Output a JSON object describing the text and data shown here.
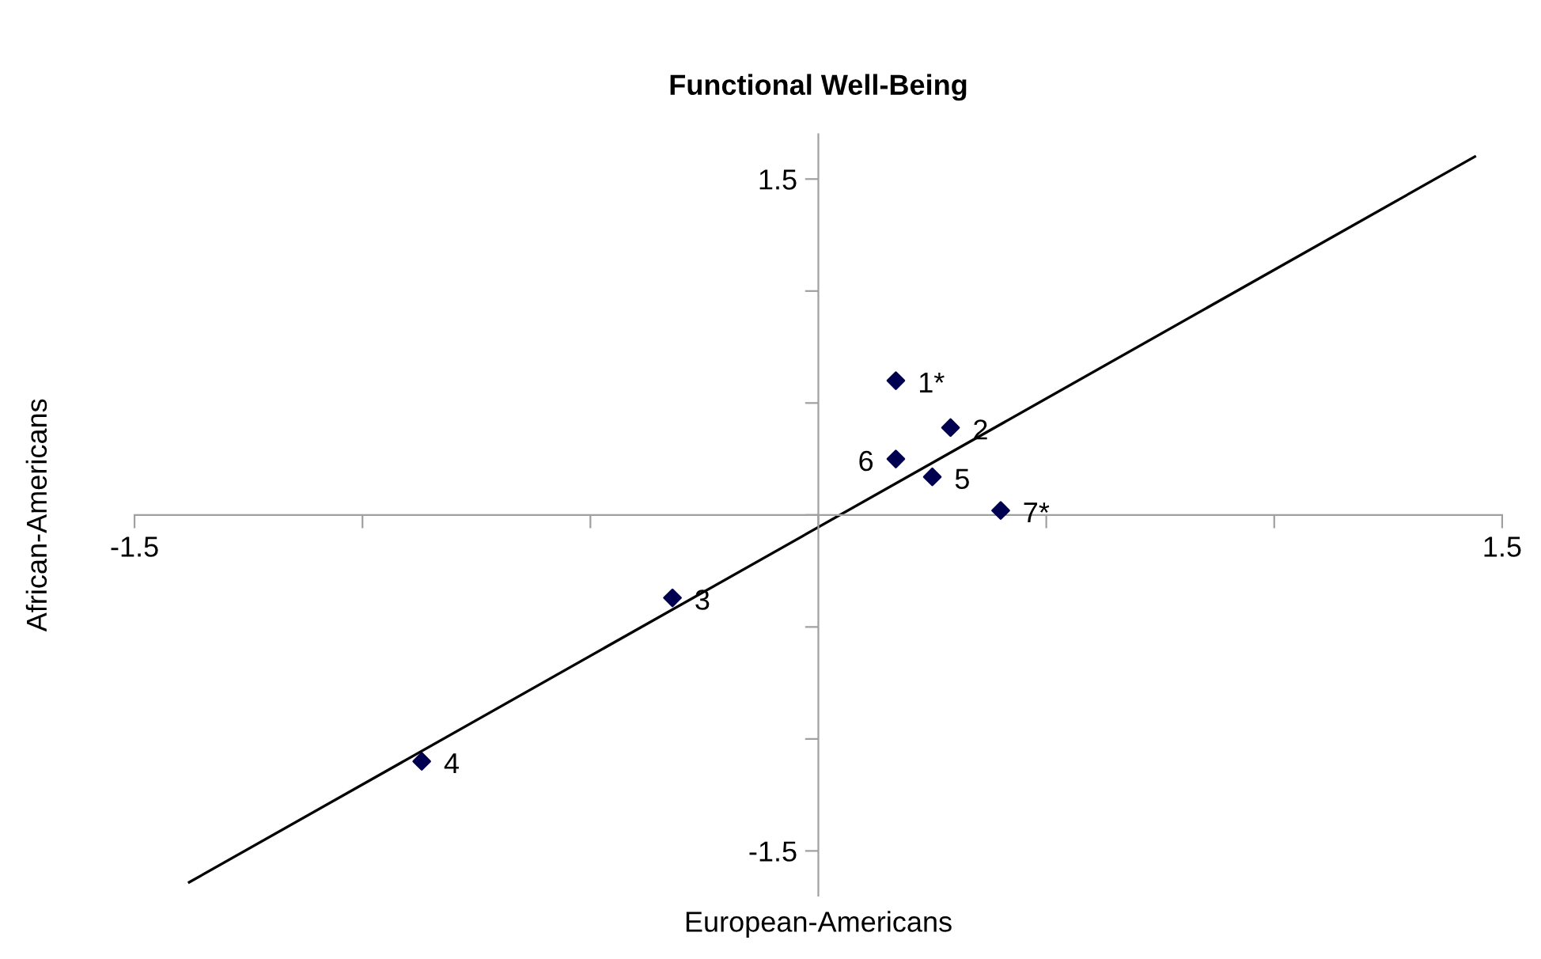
{
  "chart_data": {
    "type": "scatter",
    "title": "Functional Well-Being",
    "xlabel": "European-Americans",
    "ylabel": "African-Americans",
    "xlim": [
      -1.5,
      1.5
    ],
    "ylim": [
      -1.7,
      1.7
    ],
    "xticks": [
      -1.5,
      {
        "value": -1.0,
        "label": null
      },
      {
        "value": -0.5,
        "label": null
      },
      {
        "value": 0,
        "label": null
      },
      {
        "value": 0.5,
        "label": null
      },
      {
        "value": 1.0,
        "label": null
      },
      1.5
    ],
    "yticks": [
      -1.5,
      {
        "value": -1.0,
        "label": null
      },
      {
        "value": -0.5,
        "label": null
      },
      {
        "value": 0,
        "label": null
      },
      {
        "value": 0.5,
        "label": null
      },
      {
        "value": 1.0,
        "label": null
      },
      1.5
    ],
    "grid": false,
    "legend": false,
    "series": [
      {
        "marker": "diamond",
        "color": "#000050",
        "x": [
          0.17,
          0.29,
          -0.32,
          -0.87,
          0.25,
          0.17,
          0.4
        ],
        "values": [
          0.6,
          0.39,
          -0.37,
          -1.1,
          0.17,
          0.25,
          0.02
        ]
      },
      {
        "type": "line",
        "marker": "none",
        "line_style": "solid",
        "color": "#000000",
        "x": [
          -1.38,
          1.44
        ],
        "values": [
          -1.64,
          1.6
        ]
      }
    ],
    "annotations": [
      {
        "text": "1*",
        "x": 0.17,
        "y": 0.6
      },
      {
        "text": "2",
        "x": 0.29,
        "y": 0.39
      },
      {
        "text": "3",
        "x": -0.32,
        "y": -0.37
      },
      {
        "text": "4",
        "x": -0.87,
        "y": -1.1
      },
      {
        "text": "5",
        "x": 0.25,
        "y": 0.17
      },
      {
        "text": "6",
        "x": 0.17,
        "y": 0.25
      },
      {
        "text": "7*",
        "x": 0.4,
        "y": 0.02
      }
    ]
  }
}
